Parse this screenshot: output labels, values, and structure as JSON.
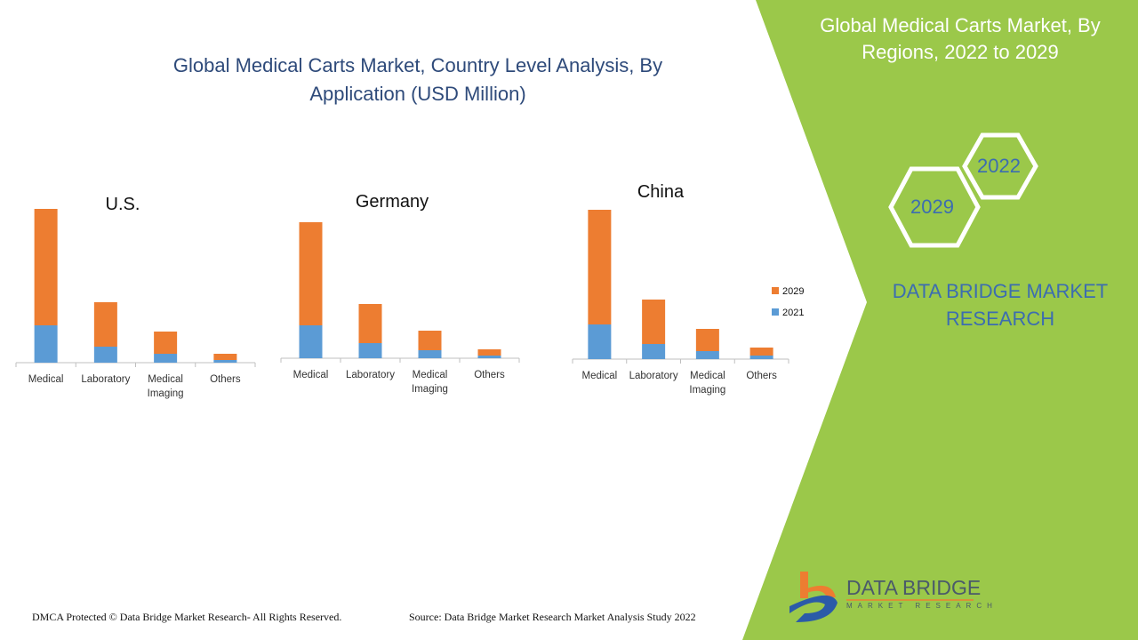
{
  "title": "Global Medical Carts Market, Country Level Analysis, By Application (USD Million)",
  "panel": {
    "title": "Global Medical Carts Market, By Regions, 2022 to 2029",
    "hex_years": [
      "2022",
      "2029"
    ],
    "brand": "DATA BRIDGE MARKET RESEARCH"
  },
  "logo": {
    "name": "DATA BRIDGE",
    "sub": "MARKET RESEARCH"
  },
  "footer": {
    "copyright": "DMCA Protected © Data Bridge Market Research- All Rights Reserved.",
    "source": "Source: Data Bridge Market Research Market Analysis Study 2022"
  },
  "colors": {
    "2021": "#5b9bd5",
    "2029": "#ed7d31",
    "panel": "#9bc84a"
  },
  "legend": [
    "2029",
    "2021"
  ],
  "chart_data": [
    {
      "type": "bar",
      "stacked": true,
      "title": "U.S.",
      "categories": [
        "Medical",
        "Laboratory",
        "Medical Imaging",
        "Others"
      ],
      "series": [
        {
          "name": "2021",
          "values": [
            42,
            18,
            10,
            3
          ]
        },
        {
          "name": "2029",
          "values": [
            131,
            50,
            25,
            7
          ]
        }
      ],
      "legend": "right"
    },
    {
      "type": "bar",
      "stacked": true,
      "title": "Germany",
      "categories": [
        "Medical",
        "Laboratory",
        "Medical Imaging",
        "Others"
      ],
      "series": [
        {
          "name": "2021",
          "values": [
            37,
            17,
            9,
            3
          ]
        },
        {
          "name": "2029",
          "values": [
            116,
            44,
            22,
            7
          ]
        }
      ],
      "legend": "right"
    },
    {
      "type": "bar",
      "stacked": true,
      "title": "China",
      "categories": [
        "Medical",
        "Laboratory",
        "Medical Imaging",
        "Others"
      ],
      "series": [
        {
          "name": "2021",
          "values": [
            39,
            17,
            9,
            4
          ]
        },
        {
          "name": "2029",
          "values": [
            129,
            50,
            25,
            9
          ]
        }
      ],
      "legend": "right"
    }
  ]
}
